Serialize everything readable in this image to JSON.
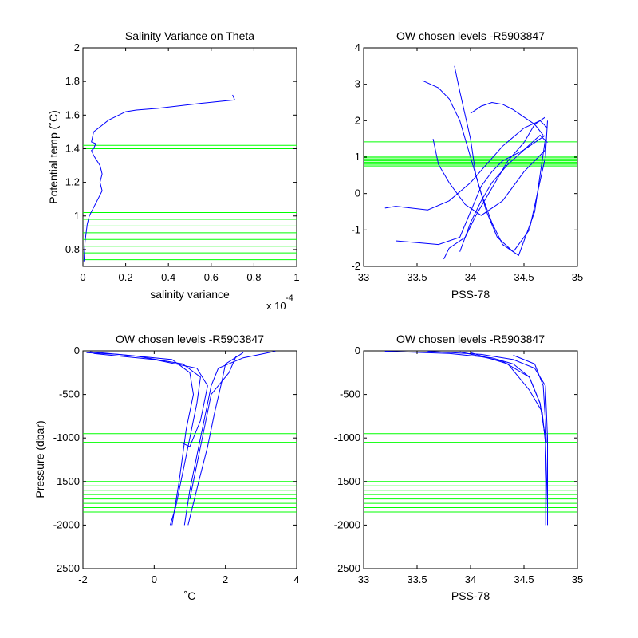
{
  "chart_data": [
    {
      "id": "ax1",
      "type": "line",
      "title": "Salinity Variance on Theta",
      "xlabel": "salinity variance",
      "ylabel": "Potential temp (˚C)",
      "x_multiplier_label": "x 10",
      "x_multiplier_exp": "-4",
      "xlim": [
        0,
        1
      ],
      "ylim": [
        0.7,
        2
      ],
      "xticks": [
        0,
        0.2,
        0.4,
        0.6,
        0.8,
        1
      ],
      "xticklabels": [
        "0",
        "0.2",
        "0.4",
        "0.6",
        "0.8",
        "1"
      ],
      "yticks": [
        0.8,
        1,
        1.2,
        1.4,
        1.6,
        1.8,
        2
      ],
      "yticklabels": [
        "0.8",
        "1",
        "1.2",
        "1.4",
        "1.6",
        "1.8",
        "2"
      ],
      "series": [
        {
          "x": [
            0.7,
            0.71,
            0.55,
            0.35,
            0.25,
            0.2,
            0.12,
            0.07,
            0.05,
            0.04,
            0.06,
            0.05,
            0.04,
            0.05,
            0.08,
            0.09,
            0.08,
            0.09,
            0.07,
            0.05,
            0.03,
            0.02,
            0.01,
            0.005
          ],
          "y": [
            1.72,
            1.69,
            1.67,
            1.64,
            1.63,
            1.62,
            1.57,
            1.52,
            1.5,
            1.44,
            1.43,
            1.4,
            1.39,
            1.36,
            1.3,
            1.25,
            1.2,
            1.15,
            1.1,
            1.05,
            1.0,
            0.95,
            0.85,
            0.73
          ]
        }
      ],
      "hlines": [
        1.42,
        1.4,
        1.02,
        0.98,
        0.94,
        0.9,
        0.86,
        0.82,
        0.78,
        0.74
      ]
    },
    {
      "id": "ax2",
      "type": "line",
      "title": "OW chosen levels -R5903847",
      "xlabel": "PSS-78",
      "ylabel": "",
      "xlim": [
        33,
        35
      ],
      "ylim": [
        -2,
        4
      ],
      "xticks": [
        33,
        33.5,
        34,
        34.5,
        35
      ],
      "xticklabels": [
        "33",
        "33.5",
        "34",
        "34.5",
        "35"
      ],
      "yticks": [
        -2,
        -1,
        0,
        1,
        2,
        3,
        4
      ],
      "yticklabels": [
        "-2",
        "-1",
        "0",
        "1",
        "2",
        "3",
        "4"
      ],
      "series": [
        {
          "x": [
            33.55,
            33.7,
            33.8,
            33.9,
            34.0,
            34.1,
            34.2,
            34.3,
            34.45,
            34.6,
            34.7
          ],
          "y": [
            3.1,
            2.9,
            2.6,
            2.0,
            1.0,
            0.0,
            -0.8,
            -1.4,
            -1.7,
            -0.5,
            1.5
          ]
        },
        {
          "x": [
            33.85,
            33.9,
            34.0,
            34.05,
            34.15,
            34.25,
            34.4,
            34.55,
            34.7,
            34.72
          ],
          "y": [
            3.5,
            2.8,
            1.5,
            0.5,
            -0.5,
            -1.2,
            -1.6,
            -1.0,
            1.0,
            2.0
          ]
        },
        {
          "x": [
            33.3,
            33.5,
            33.7,
            33.9,
            34.0,
            34.1,
            34.2,
            34.3,
            34.5,
            34.7
          ],
          "y": [
            -1.3,
            -1.35,
            -1.4,
            -1.2,
            -0.5,
            0.2,
            0.6,
            0.9,
            1.2,
            1.6
          ]
        },
        {
          "x": [
            33.2,
            33.3,
            33.6,
            33.8,
            34.0,
            34.15,
            34.3,
            34.5,
            34.65,
            34.72
          ],
          "y": [
            -0.4,
            -0.35,
            -0.45,
            -0.2,
            0.3,
            0.8,
            1.3,
            1.8,
            2.0,
            1.8
          ]
        },
        {
          "x": [
            33.75,
            33.8,
            33.95,
            34.05,
            34.15,
            34.25,
            34.35,
            34.5,
            34.6,
            34.7
          ],
          "y": [
            -1.8,
            -1.5,
            -1.2,
            -0.6,
            -0.1,
            0.4,
            0.9,
            1.4,
            1.9,
            2.1
          ]
        },
        {
          "x": [
            34.0,
            34.1,
            34.2,
            34.3,
            34.4,
            34.5,
            34.6,
            34.68
          ],
          "y": [
            2.2,
            2.4,
            2.5,
            2.45,
            2.3,
            2.1,
            1.9,
            1.6
          ]
        },
        {
          "x": [
            33.9,
            33.95,
            34.0,
            34.1,
            34.2,
            34.35,
            34.5,
            34.65,
            34.72
          ],
          "y": [
            -1.6,
            -1.2,
            -0.8,
            -0.2,
            0.3,
            0.8,
            1.2,
            1.6,
            1.4
          ]
        },
        {
          "x": [
            33.65,
            33.7,
            33.8,
            33.95,
            34.1,
            34.3,
            34.5,
            34.7
          ],
          "y": [
            1.5,
            0.8,
            0.3,
            -0.3,
            -0.6,
            -0.2,
            0.6,
            1.2
          ]
        }
      ],
      "hlines": [
        1.42,
        1.02,
        0.98,
        0.94,
        0.9,
        0.86,
        0.82,
        0.78,
        0.74
      ]
    },
    {
      "id": "ax3",
      "type": "line",
      "title": "OW chosen levels -R5903847",
      "xlabel": "˚C",
      "ylabel": "Pressure (dbar)",
      "xlim": [
        -2,
        4
      ],
      "ylim": [
        -2500,
        0
      ],
      "xticks": [
        -2,
        0,
        2,
        4
      ],
      "xticklabels": [
        "-2",
        "0",
        "2",
        "4"
      ],
      "yticks": [
        -2500,
        -2000,
        -1500,
        -1000,
        -500,
        0
      ],
      "yticklabels": [
        "-2500",
        "-2000",
        "-1500",
        "-1000",
        "-500",
        "0"
      ],
      "series": [
        {
          "x": [
            -1.8,
            -0.5,
            0.8,
            1.3,
            1.2,
            1.0,
            0.8,
            0.6,
            0.45
          ],
          "y": [
            -10,
            -60,
            -150,
            -300,
            -600,
            -1000,
            -1400,
            -1800,
            -2000
          ]
        },
        {
          "x": [
            3.4,
            2.5,
            1.8,
            1.6,
            1.4,
            1.2,
            1.0,
            0.85
          ],
          "y": [
            -5,
            -80,
            -200,
            -400,
            -800,
            -1200,
            -1600,
            -2000
          ]
        },
        {
          "x": [
            -1.7,
            0.0,
            1.2,
            1.5,
            1.3,
            1.0,
            0.75
          ],
          "y": [
            -30,
            -100,
            -200,
            -400,
            -800,
            -1100,
            -1050
          ]
        },
        {
          "x": [
            2.5,
            2.0,
            1.9,
            1.7,
            1.5,
            1.25,
            0.95
          ],
          "y": [
            -20,
            -150,
            -350,
            -700,
            -1100,
            -1500,
            -2000
          ]
        },
        {
          "x": [
            -1.9,
            -1.0,
            0.5,
            1.0,
            1.1,
            0.9,
            0.7,
            0.5
          ],
          "y": [
            -20,
            -40,
            -100,
            -250,
            -500,
            -900,
            -1500,
            -2000
          ]
        },
        {
          "x": [
            2.3,
            2.1,
            1.6,
            1.4,
            1.2,
            1.0
          ],
          "y": [
            -60,
            -250,
            -500,
            -900,
            -1300,
            -1700
          ]
        }
      ],
      "hlines": [
        -950,
        -1050,
        -1500,
        -1550,
        -1600,
        -1650,
        -1700,
        -1750,
        -1800,
        -1850
      ]
    },
    {
      "id": "ax4",
      "type": "line",
      "title": "OW chosen levels -R5903847",
      "xlabel": "PSS-78",
      "ylabel": "",
      "xlim": [
        33,
        35
      ],
      "ylim": [
        -2500,
        0
      ],
      "xticks": [
        33,
        33.5,
        34,
        34.5,
        35
      ],
      "xticklabels": [
        "33",
        "33.5",
        "34",
        "34.5",
        "35"
      ],
      "yticks": [
        -2500,
        -2000,
        -1500,
        -1000,
        -500,
        0
      ],
      "yticklabels": [
        "-2500",
        "-2000",
        "-1500",
        "-1000",
        "-500",
        "0"
      ],
      "series": [
        {
          "x": [
            33.2,
            33.8,
            34.2,
            34.4,
            34.55,
            34.65,
            34.7,
            34.7,
            34.7
          ],
          "y": [
            -5,
            -30,
            -80,
            -150,
            -300,
            -600,
            -1000,
            -1500,
            -2000
          ]
        },
        {
          "x": [
            33.6,
            34.1,
            34.4,
            34.6,
            34.7,
            34.72,
            34.72
          ],
          "y": [
            -5,
            -40,
            -100,
            -200,
            -400,
            -1000,
            -2000
          ]
        },
        {
          "x": [
            33.9,
            34.3,
            34.55,
            34.65,
            34.7,
            34.72
          ],
          "y": [
            -10,
            -120,
            -300,
            -600,
            -1000,
            -1800
          ]
        },
        {
          "x": [
            34.4,
            34.6,
            34.68,
            34.7,
            34.71
          ],
          "y": [
            -50,
            -150,
            -400,
            -800,
            -1050
          ]
        },
        {
          "x": [
            34.0,
            34.35,
            34.55,
            34.67,
            34.7
          ],
          "y": [
            -20,
            -150,
            -450,
            -700,
            -1050
          ]
        }
      ],
      "hlines": [
        -950,
        -1050,
        -1500,
        -1550,
        -1600,
        -1650,
        -1700,
        -1750,
        -1800,
        -1850
      ]
    }
  ]
}
